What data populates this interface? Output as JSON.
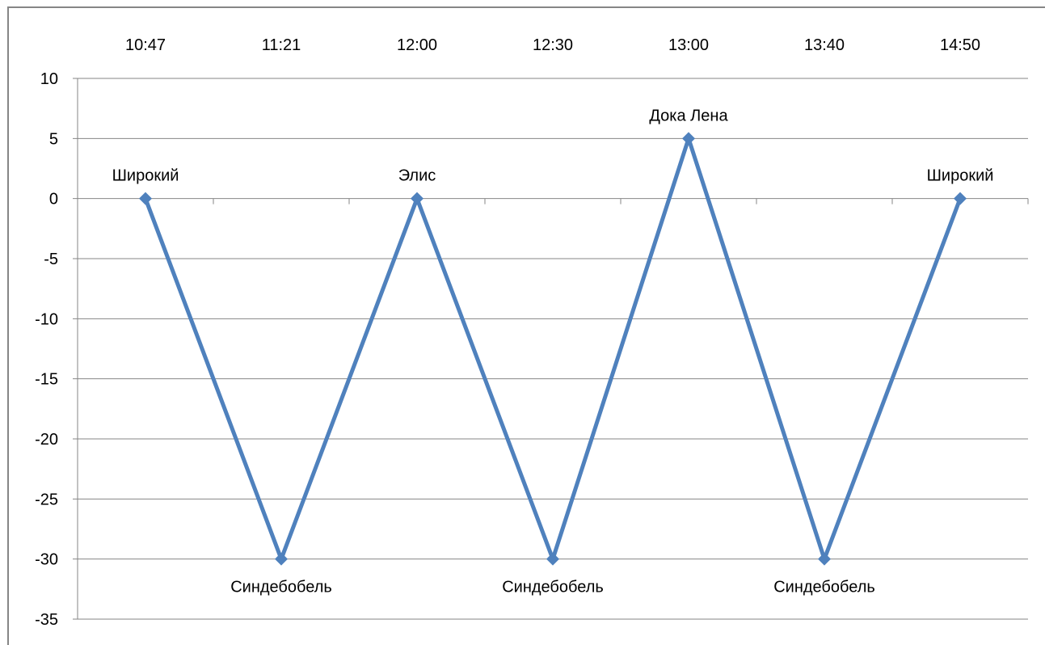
{
  "chart_data": {
    "type": "line",
    "title": "",
    "xlabel": "",
    "ylabel": "",
    "categories": [
      "10:47",
      "11:21",
      "12:00",
      "12:30",
      "13:00",
      "13:40",
      "14:50"
    ],
    "y_ticks": [
      "10",
      "5",
      "0",
      "-5",
      "-10",
      "-15",
      "-20",
      "-25",
      "-30",
      "-35"
    ],
    "ylim": [
      -35,
      10
    ],
    "y_step": 5,
    "x_axis_position": "top",
    "horizontal_gridlines": true,
    "legend": "none",
    "series": [
      {
        "values": [
          0,
          -30,
          0,
          -30,
          5,
          -30,
          0
        ],
        "labels": [
          "Широкий",
          "Синдебобель",
          "Элис",
          "Синдебобель",
          "Дока Лена",
          "Синдебобель",
          "Широкий"
        ],
        "color": "#4F81BD",
        "marker": "diamond"
      }
    ]
  }
}
